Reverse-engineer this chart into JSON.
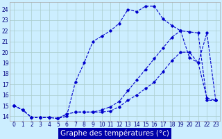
{
  "xlabel": "Graphe des températures (°c)",
  "background_color": "#cceeff",
  "grid_color": "#aacccc",
  "line_color": "#0000cc",
  "x_ticks": [
    0,
    1,
    2,
    3,
    4,
    5,
    6,
    7,
    8,
    9,
    10,
    11,
    12,
    13,
    14,
    15,
    16,
    17,
    18,
    19,
    20,
    21,
    22,
    23
  ],
  "y_ticks": [
    14,
    15,
    16,
    17,
    18,
    19,
    20,
    21,
    22,
    23,
    24
  ],
  "ylim": [
    13.6,
    24.7
  ],
  "xlim": [
    -0.5,
    23.5
  ],
  "series1_x": [
    0,
    1,
    2,
    3,
    4,
    5,
    6,
    7,
    8,
    9,
    10,
    11,
    12,
    13,
    14,
    15,
    16,
    17,
    18,
    19,
    20,
    21,
    22,
    23
  ],
  "series1_y": [
    15.0,
    14.6,
    13.9,
    13.9,
    13.9,
    13.8,
    14.0,
    17.2,
    19.0,
    21.0,
    21.5,
    22.0,
    22.7,
    24.0,
    23.8,
    24.3,
    24.3,
    23.1,
    22.5,
    22.0,
    19.5,
    19.0,
    21.8,
    15.5
  ],
  "series2_x": [
    0,
    1,
    2,
    3,
    4,
    5,
    6,
    7,
    8,
    9,
    10,
    11,
    12,
    13,
    14,
    15,
    16,
    17,
    18,
    19,
    20,
    21,
    22,
    23
  ],
  "series2_y": [
    15.0,
    14.6,
    13.9,
    13.9,
    13.9,
    13.8,
    14.2,
    14.4,
    14.4,
    14.4,
    14.4,
    14.5,
    14.9,
    15.5,
    16.0,
    16.6,
    17.2,
    18.2,
    19.2,
    20.0,
    20.0,
    19.0,
    15.7,
    15.5
  ],
  "series3_x": [
    0,
    1,
    2,
    3,
    4,
    5,
    6,
    7,
    8,
    9,
    10,
    11,
    12,
    13,
    14,
    15,
    16,
    17,
    18,
    19,
    20,
    21,
    22,
    23
  ],
  "series3_y": [
    15.0,
    14.6,
    13.9,
    13.9,
    13.9,
    13.8,
    14.2,
    14.4,
    14.4,
    14.4,
    14.6,
    14.9,
    15.4,
    16.4,
    17.4,
    18.4,
    19.4,
    20.4,
    21.4,
    22.0,
    21.9,
    21.8,
    15.5,
    15.5
  ],
  "xlabel_bg": "#0000aa",
  "xlabel_fg": "#ffffff",
  "xlabel_fontsize": 7.5,
  "tick_fontsize": 5.5
}
